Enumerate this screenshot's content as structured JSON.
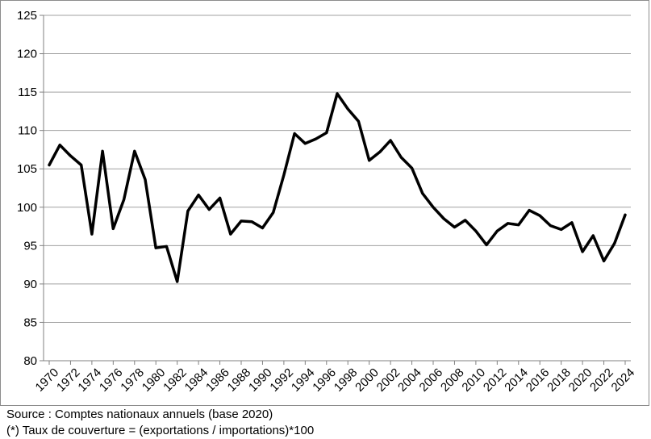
{
  "chart_data": {
    "type": "line",
    "title": "",
    "xlabel": "",
    "ylabel": "",
    "ylim": [
      80,
      125
    ],
    "yticks": [
      80,
      85,
      90,
      95,
      100,
      105,
      110,
      115,
      120,
      125
    ],
    "xlim": [
      1970,
      2024
    ],
    "xticks": [
      1970,
      1972,
      1974,
      1976,
      1978,
      1980,
      1982,
      1984,
      1986,
      1988,
      1990,
      1992,
      1994,
      1996,
      1998,
      2000,
      2002,
      2004,
      2006,
      2008,
      2010,
      2012,
      2014,
      2016,
      2018,
      2020,
      2022,
      2024
    ],
    "grid": "horizontal",
    "legend": "none",
    "series": [
      {
        "color": "#000000",
        "x": [
          1970,
          1971,
          1972,
          1973,
          1974,
          1975,
          1976,
          1977,
          1978,
          1979,
          1980,
          1981,
          1982,
          1983,
          1984,
          1985,
          1986,
          1987,
          1988,
          1989,
          1990,
          1991,
          1992,
          1993,
          1994,
          1995,
          1996,
          1997,
          1998,
          1999,
          2000,
          2001,
          2002,
          2003,
          2004,
          2005,
          2006,
          2007,
          2008,
          2009,
          2010,
          2011,
          2012,
          2013,
          2014,
          2015,
          2016,
          2017,
          2018,
          2019,
          2020,
          2021,
          2022,
          2023,
          2024
        ],
        "values": [
          105.5,
          108.1,
          106.7,
          105.5,
          96.5,
          107.3,
          97.2,
          101.0,
          107.3,
          103.6,
          94.7,
          94.9,
          90.3,
          99.5,
          101.6,
          99.7,
          101.2,
          96.5,
          98.2,
          98.1,
          97.3,
          99.3,
          104.2,
          109.6,
          108.3,
          108.9,
          109.7,
          114.8,
          112.8,
          111.2,
          106.1,
          107.2,
          108.7,
          106.5,
          105.1,
          101.8,
          100.0,
          98.5,
          97.4,
          98.3,
          96.9,
          95.1,
          96.9,
          97.9,
          97.7,
          99.6,
          98.9,
          97.6,
          97.1,
          98.0,
          94.2,
          96.3,
          93.0,
          95.3,
          99.0
        ]
      }
    ]
  },
  "notes": {
    "source": "Source : Comptes nationaux annuels (base 2020)",
    "footnote": "(*) Taux de couverture = (exportations / importations)*100"
  },
  "colors": {
    "line": "#000000",
    "grid": "#a0a0a0",
    "axis": "#808080",
    "border": "#8c8c8c",
    "background": "#ffffff"
  }
}
